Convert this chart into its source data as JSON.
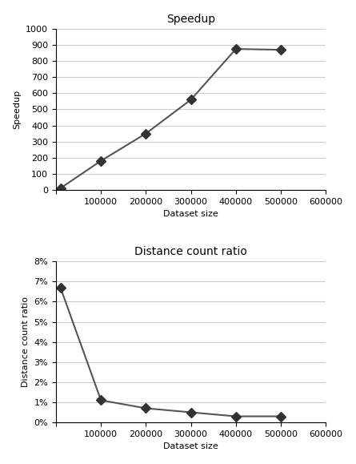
{
  "speedup": {
    "title": "Speedup",
    "xlabel": "Dataset size",
    "ylabel": "Speedup",
    "x": [
      10000,
      100000,
      200000,
      300000,
      400000,
      500000
    ],
    "y": [
      10,
      180,
      350,
      560,
      875,
      870
    ],
    "xlim": [
      0,
      600000
    ],
    "ylim": [
      0,
      1000
    ],
    "xticks": [
      0,
      100000,
      200000,
      300000,
      400000,
      500000,
      600000
    ],
    "yticks": [
      0,
      100,
      200,
      300,
      400,
      500,
      600,
      700,
      800,
      900,
      1000
    ]
  },
  "distance": {
    "title": "Distance count ratio",
    "xlabel": "Dataset size",
    "ylabel": "Distance count ratio",
    "x": [
      10000,
      100000,
      200000,
      300000,
      400000,
      500000
    ],
    "y": [
      0.067,
      0.011,
      0.007,
      0.005,
      0.003,
      0.003
    ],
    "xlim": [
      0,
      600000
    ],
    "ylim": [
      0,
      0.08
    ],
    "xticks": [
      0,
      100000,
      200000,
      300000,
      400000,
      500000,
      600000
    ],
    "yticks": [
      0,
      0.01,
      0.02,
      0.03,
      0.04,
      0.05,
      0.06,
      0.07,
      0.08
    ]
  },
  "line_color": "#555555",
  "marker": "D",
  "marker_color": "#333333",
  "marker_size": 6,
  "bg_color": "#ffffff",
  "grid_color": "#cccccc",
  "title_fontsize": 10,
  "label_fontsize": 8,
  "tick_fontsize": 8
}
